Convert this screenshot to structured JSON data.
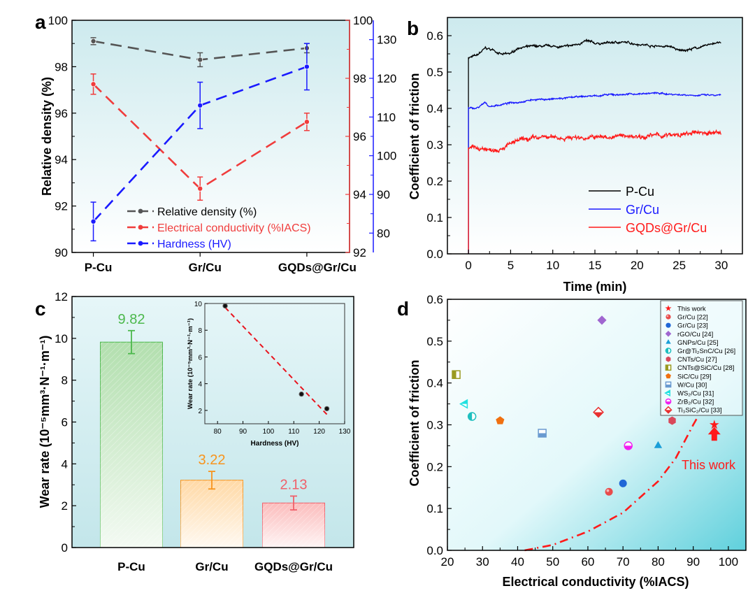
{
  "chart_data": [
    {
      "panel": "a",
      "type": "line",
      "categories": [
        "P-Cu",
        "Gr/Cu",
        "GQDs@Gr/Cu"
      ],
      "ylabel": "Relative density (%)",
      "ylim": [
        90,
        100
      ],
      "yticks": [
        90,
        92,
        94,
        96,
        98,
        100
      ],
      "y2lim": [
        92,
        100
      ],
      "y2ticks": [
        92,
        94,
        96,
        98,
        100
      ],
      "y3lim": [
        75,
        135
      ],
      "y3ticks": [
        80,
        90,
        100,
        110,
        120,
        130
      ],
      "legend_position": "bottom-center",
      "series": [
        {
          "name": "Relative density (%)",
          "axis": "left",
          "color": "#555555",
          "values": [
            99.1,
            98.3,
            98.8
          ],
          "errors": [
            0.15,
            0.3,
            0.2
          ]
        },
        {
          "name": "Electrical conductivity (%IACS)",
          "axis": "right-red",
          "color": "#f03c3c",
          "values": [
            97.8,
            94.2,
            96.5
          ],
          "errors": [
            0.35,
            0.4,
            0.3
          ]
        },
        {
          "name": "Hardness (HV)",
          "axis": "right-blue",
          "color": "#1a1aff",
          "values": [
            83,
            113,
            123
          ],
          "errors": [
            5,
            6,
            6
          ]
        }
      ]
    },
    {
      "panel": "b",
      "type": "line",
      "xlabel": "Time (min)",
      "ylabel": "Coefficient of friction",
      "xlim": [
        -2.5,
        32.5
      ],
      "ylim": [
        0,
        0.65
      ],
      "xticks": [
        0,
        5,
        10,
        15,
        20,
        25,
        30
      ],
      "yticks": [
        0.0,
        0.1,
        0.2,
        0.3,
        0.4,
        0.5,
        0.6
      ],
      "legend_position": "bottom-right",
      "series": [
        {
          "name": "P-Cu",
          "color": "#000000",
          "x": [
            0,
            1,
            2,
            3,
            4,
            5,
            6,
            8,
            10,
            12,
            14,
            15,
            18,
            20,
            22,
            24,
            25,
            26,
            28,
            29,
            30
          ],
          "y": [
            0.54,
            0.545,
            0.565,
            0.56,
            0.548,
            0.55,
            0.568,
            0.57,
            0.57,
            0.57,
            0.585,
            0.578,
            0.582,
            0.578,
            0.572,
            0.57,
            0.558,
            0.562,
            0.57,
            0.58,
            0.58
          ]
        },
        {
          "name": "Gr/Cu",
          "color": "#1a1aff",
          "x": [
            0,
            1,
            2,
            2.5,
            5,
            8,
            10,
            15,
            20,
            22,
            25,
            30
          ],
          "y": [
            0.4,
            0.4,
            0.415,
            0.405,
            0.415,
            0.425,
            0.425,
            0.435,
            0.44,
            0.442,
            0.438,
            0.435
          ]
        },
        {
          "name": "GQDs@Gr/Cu",
          "color": "#ff1a1a",
          "x": [
            0,
            2,
            2.5,
            4,
            6,
            9,
            10,
            15,
            20,
            25,
            28,
            30
          ],
          "y": [
            0.29,
            0.29,
            0.285,
            0.295,
            0.31,
            0.32,
            0.32,
            0.32,
            0.325,
            0.325,
            0.335,
            0.33
          ]
        }
      ]
    },
    {
      "panel": "c",
      "type": "bar",
      "categories": [
        "P-Cu",
        "Gr/Cu",
        "GQDs@Gr/Cu"
      ],
      "ylabel": "Wear rate (10⁻⁵mm³·N⁻¹·m⁻¹)",
      "ylim": [
        0,
        12
      ],
      "yticks": [
        0,
        2,
        4,
        6,
        8,
        10,
        12
      ],
      "values": [
        9.82,
        3.22,
        2.13
      ],
      "data_labels": [
        "9.82",
        "3.22",
        "2.13"
      ],
      "errors": [
        0.55,
        0.42,
        0.33
      ],
      "colors": [
        "#4cb84c",
        "#f7941d",
        "#f0606a"
      ],
      "fills": [
        "#b2dfae",
        "#ffd9a6",
        "#fbbcbc"
      ],
      "inset": {
        "type": "scatter",
        "xlabel": "Hardness (HV)",
        "ylabel": "Wear rate (10⁻⁵mm³·N⁻¹·m⁻¹)",
        "xlim": [
          75,
          130
        ],
        "ylim": [
          1,
          10
        ],
        "xticks": [
          80,
          90,
          100,
          110,
          120,
          130
        ],
        "yticks": [
          2,
          4,
          6,
          8,
          10
        ],
        "x": [
          83,
          113,
          123
        ],
        "y": [
          9.82,
          3.22,
          2.13
        ],
        "fit_line": {
          "x": [
            83,
            123
          ],
          "y": [
            9.7,
            1.7
          ],
          "color": "#e8141e"
        }
      }
    },
    {
      "panel": "d",
      "type": "scatter",
      "xlabel": "Electrical conductivity (%IACS)",
      "ylabel": "Coefficient of friction",
      "xlim": [
        20,
        105
      ],
      "ylim": [
        0,
        0.6
      ],
      "xticks": [
        20,
        30,
        40,
        50,
        60,
        70,
        80,
        90,
        100
      ],
      "yticks": [
        0.0,
        0.1,
        0.2,
        0.3,
        0.4,
        0.5,
        0.6
      ],
      "legend_position": "top-right",
      "annotation": "This work",
      "trend_curve": {
        "x": [
          42,
          50,
          60,
          70,
          80,
          85,
          90,
          91
        ],
        "y": [
          0,
          0.013,
          0.045,
          0.09,
          0.165,
          0.22,
          0.3,
          0.315
        ],
        "color": "#ff1a1a",
        "style": "dash-dot"
      },
      "points": [
        {
          "name": "This work",
          "x": 96,
          "y": 0.3,
          "marker": "star",
          "color": "#ff1a1a"
        },
        {
          "name": "Gr/Cu [22]",
          "x": 66,
          "y": 0.14,
          "marker": "sphere",
          "color": "#e84b4b"
        },
        {
          "name": "Gr/Cu [23]",
          "x": 70,
          "y": 0.16,
          "marker": "circle",
          "color": "#1f66d6"
        },
        {
          "name": "rGO/Cu [24]",
          "x": 64,
          "y": 0.55,
          "marker": "diamond",
          "color": "#a066d0"
        },
        {
          "name": "GNPs/Cu [25]",
          "x": 80,
          "y": 0.25,
          "marker": "triangle",
          "color": "#1a9ed8"
        },
        {
          "name": "Gr@Ti₂SnC/Cu [26]",
          "x": 27,
          "y": 0.32,
          "marker": "half-circle-left",
          "color": "#1fbfbf"
        },
        {
          "name": "CNTs/Cu [27]",
          "x": 84,
          "y": 0.31,
          "marker": "hexagon",
          "color": "#d9485a"
        },
        {
          "name": "CNTs@SiC/Cu [28]",
          "x": 22.5,
          "y": 0.42,
          "marker": "half-square-left",
          "color": "#9a9a20"
        },
        {
          "name": "SiC/Cu [29]",
          "x": 35,
          "y": 0.31,
          "marker": "pentagon",
          "color": "#f07010"
        },
        {
          "name": "W/Cu [30]",
          "x": 47,
          "y": 0.28,
          "marker": "half-square-bottom",
          "color": "#6a9ad0"
        },
        {
          "name": "WS₂/Cu [31]",
          "x": 25,
          "y": 0.35,
          "marker": "triangle-left",
          "color": "#20e0e0"
        },
        {
          "name": "ZrB₂/Cu [32]",
          "x": 71.5,
          "y": 0.25,
          "marker": "half-circle-bottom",
          "color": "#f020f0"
        },
        {
          "name": "Ti₃SiC₂/Cu [33]",
          "x": 63,
          "y": 0.33,
          "marker": "half-diamond-bottom",
          "color": "#e83030"
        }
      ]
    }
  ],
  "panel_labels": [
    "a",
    "b",
    "c",
    "d"
  ]
}
